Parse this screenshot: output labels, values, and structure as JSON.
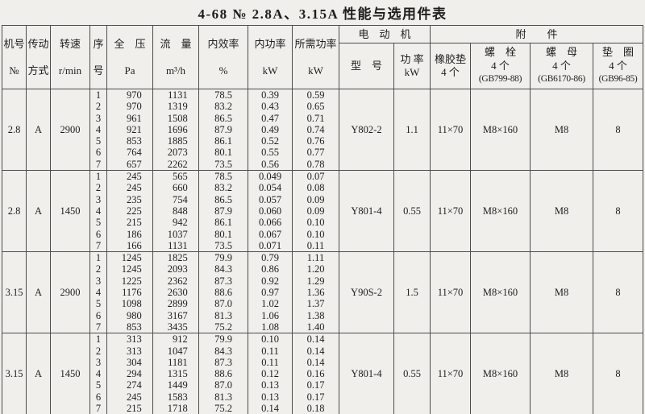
{
  "title": "4-68  №  2.8A、3.15A 性能与选用件表",
  "table": {
    "header": {
      "fan_no": [
        "机号",
        "№"
      ],
      "drive": [
        "传动",
        "方式"
      ],
      "speed": [
        "转速",
        "r/min"
      ],
      "seq": [
        "序",
        "号"
      ],
      "pressure": [
        "全　压",
        "Pa"
      ],
      "flow": [
        "流　量",
        "m³/h"
      ],
      "efficiency": [
        "内效率",
        "%"
      ],
      "internal_power": [
        "内功率",
        "kW"
      ],
      "required_power": [
        "所需功率",
        "kW"
      ],
      "motor_group": "电　动　机",
      "motor_model": [
        "型　号"
      ],
      "motor_power": [
        "功 率",
        "kW"
      ],
      "accessories_group": "附　　件",
      "rubber_pad": [
        "橡胶垫",
        "4 个"
      ],
      "bolt": [
        "螺　栓",
        "4 个",
        "(GB799-88)"
      ],
      "nut": [
        "螺　母",
        "4 个",
        "(GB6170-86)"
      ],
      "washer": [
        "垫　圈",
        "4 个",
        "(GB96-85)"
      ]
    },
    "blocks": [
      {
        "fan_no": "2.8",
        "drive": "A",
        "speed": "2900",
        "seq": [
          "1",
          "2",
          "3",
          "4",
          "5",
          "6",
          "7"
        ],
        "pressure_pa": [
          "970",
          "970",
          "961",
          "921",
          "853",
          "764",
          "657"
        ],
        "flow_m3h": [
          "1131",
          "1319",
          "1508",
          "1696",
          "1885",
          "2073",
          "2262"
        ],
        "efficiency_pct": [
          "78.5",
          "83.2",
          "86.5",
          "87.9",
          "86.1",
          "80.1",
          "73.5"
        ],
        "internal_kw": [
          "0.39",
          "0.43",
          "0.47",
          "0.49",
          "0.52",
          "0.55",
          "0.56"
        ],
        "required_kw": [
          "0.59",
          "0.65",
          "0.71",
          "0.74",
          "0.76",
          "0.77",
          "0.78"
        ],
        "motor_model": "Y802-2",
        "motor_kw": "1.1",
        "rubber_pad": "11×70",
        "bolt": "M8×160",
        "nut": "M8",
        "washer": "8"
      },
      {
        "fan_no": "2.8",
        "drive": "A",
        "speed": "1450",
        "seq": [
          "1",
          "2",
          "3",
          "4",
          "5",
          "6",
          "7"
        ],
        "pressure_pa": [
          "245",
          "245",
          "235",
          "225",
          "215",
          "186",
          "166"
        ],
        "flow_m3h": [
          "565",
          "660",
          "754",
          "848",
          "942",
          "1037",
          "1131"
        ],
        "efficiency_pct": [
          "78.5",
          "83.2",
          "86.5",
          "87.9",
          "86.1",
          "80.1",
          "73.5"
        ],
        "internal_kw": [
          "0.049",
          "0.054",
          "0.057",
          "0.060",
          "0.066",
          "0.067",
          "0.071"
        ],
        "required_kw": [
          "0.07",
          "0.08",
          "0.09",
          "0.09",
          "0.10",
          "0.10",
          "0.11"
        ],
        "motor_model": "Y801-4",
        "motor_kw": "0.55",
        "rubber_pad": "11×70",
        "bolt": "M8×160",
        "nut": "M8",
        "washer": "8"
      },
      {
        "fan_no": "3.15",
        "drive": "A",
        "speed": "2900",
        "seq": [
          "1",
          "2",
          "3",
          "4",
          "5",
          "6",
          "7"
        ],
        "pressure_pa": [
          "1245",
          "1245",
          "1225",
          "1176",
          "1098",
          "980",
          "853"
        ],
        "flow_m3h": [
          "1825",
          "2093",
          "2362",
          "2630",
          "2899",
          "3167",
          "3435"
        ],
        "efficiency_pct": [
          "79.9",
          "84.3",
          "87.3",
          "88.6",
          "87.0",
          "81.3",
          "75.2"
        ],
        "internal_kw": [
          "0.79",
          "0.86",
          "0.92",
          "0.97",
          "1.02",
          "1.06",
          "1.08"
        ],
        "required_kw": [
          "1.11",
          "1.20",
          "1.29",
          "1.36",
          "1.37",
          "1.38",
          "1.40"
        ],
        "motor_model": "Y90S-2",
        "motor_kw": "1.5",
        "rubber_pad": "11×70",
        "bolt": "M8×160",
        "nut": "M8",
        "washer": "8"
      },
      {
        "fan_no": "3.15",
        "drive": "A",
        "speed": "1450",
        "seq": [
          "1",
          "2",
          "3",
          "4",
          "5",
          "6",
          "7"
        ],
        "pressure_pa": [
          "313",
          "313",
          "304",
          "294",
          "274",
          "245",
          "215"
        ],
        "flow_m3h": [
          "912",
          "1047",
          "1181",
          "1315",
          "1449",
          "1583",
          "1718"
        ],
        "efficiency_pct": [
          "79.9",
          "84.3",
          "87.3",
          "88.6",
          "87.0",
          "81.3",
          "75.2"
        ],
        "internal_kw": [
          "0.10",
          "0.11",
          "0.11",
          "0.12",
          "0.13",
          "0.13",
          "0.14"
        ],
        "required_kw": [
          "0.14",
          "0.14",
          "0.14",
          "0.16",
          "0.17",
          "0.17",
          "0.18"
        ],
        "motor_model": "Y801-4",
        "motor_kw": "0.55",
        "rubber_pad": "11×70",
        "bolt": "M8×160",
        "nut": "M8",
        "washer": "8"
      }
    ]
  }
}
